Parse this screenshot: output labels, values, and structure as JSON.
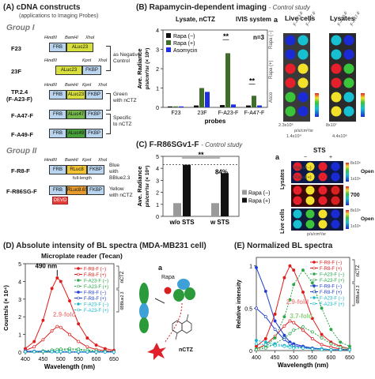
{
  "panelA": {
    "title": "(A) cDNA constructs",
    "subtitle": "(applications to Imaging Probes)",
    "group1": "Group I",
    "group2": "Group II",
    "sites": {
      "hindIII": "HindIII",
      "bamHI": "BamHI",
      "xhoI": "XhoI",
      "kpnI": "KpnI"
    },
    "constructs": [
      {
        "name": "F23",
        "parts": [
          "FRB",
          "ALuc23"
        ]
      },
      {
        "name": "23F",
        "parts": [
          "ALuc23",
          "FKBP"
        ]
      },
      {
        "name": "TP.2.4",
        "name2": "(F-A23-F)",
        "parts": [
          "FRB",
          "ALuc23",
          "FKBP"
        ]
      },
      {
        "name": "F-A47-F",
        "parts": [
          "FRB",
          "ALuc47",
          "FKBP"
        ]
      },
      {
        "name": "F-A49-F",
        "parts": [
          "FRB",
          "ALuc49",
          "FKBP"
        ]
      },
      {
        "name": "F-R8-F",
        "parts": [
          "FRB",
          "RLuc8",
          "FKBP"
        ]
      },
      {
        "name": "F-R86SG-F",
        "parts": [
          "FRB",
          "RLuc8.6SG",
          "FKBP"
        ],
        "extra": "DEVD"
      }
    ],
    "notes": {
      "negative": [
        "as Negative",
        "Control"
      ],
      "green": [
        "Green",
        "with nCTZ"
      ],
      "specific": [
        "Specific",
        "to nCTZ"
      ],
      "blue": [
        "Blue",
        "with",
        "BBlue2.3"
      ],
      "fulllength": "full-length",
      "yellow": [
        "Yellow",
        "with nCTZ"
      ]
    }
  },
  "panelB": {
    "title": "(B) Rapamycin-dependent imaging",
    "title_note": "- Control study",
    "sub1": "Lysate, nCTZ",
    "sub2": "IVIS system",
    "n": "n=3",
    "ylabel": "Ave. Radiance",
    "ylabel2": "p/s/cm²/sr (× 10⁶)",
    "xlabel": "probes",
    "sig": "**",
    "image_label": "a",
    "live_label": "Live cells",
    "lysates_label": "Lysates",
    "col1": "F-A23-F",
    "col2": "F-A47-F",
    "row_rapa_minus": "Rapa (−)",
    "row_rapa_plus": "Rapa (+)",
    "row_asco": "Asco",
    "scale_live_max": "2.3x10⁵",
    "scale_live_min": "1.4x10⁴",
    "scale_lys_max": "8x10⁷",
    "scale_lys_min": "4.4x10⁶",
    "scale_unit": "p/s/cm²/sr"
  },
  "panelC": {
    "title": "(C) F-R86SGv1-F",
    "title_note": "- Control study",
    "ylabel": "Ave. Radiance",
    "ylabel2": "p/s/cm²/sr (× 10⁸)",
    "percent": "84%",
    "sig": "**",
    "image_label": "a",
    "sts": "STS",
    "sts_minus": "−",
    "sts_plus": "+",
    "lysates": "Lysates",
    "live_cells": "Live cells",
    "row_rapa_minus": "Rapa (−)",
    "row_rapa_plus": "Rapa (+)",
    "scale1": "8x10⁶",
    "scale1_min": "1x10⁶",
    "scale2": "700",
    "scale3": "8x10⁵",
    "scale3_min": "1x10⁵",
    "open": "Open",
    "unit": "p/s/cm²/sr"
  },
  "panelD": {
    "title": "(D) Absolute intensity of BL spectra (MDA-MB231 cell)",
    "subtitle": "Microplate reader (Tecan)",
    "peak_label": "490 nm",
    "fold_label": "2.9-fold",
    "ylabel": "Counts/s (× 10⁴)",
    "xlabel": "Wavelength (nm)",
    "bracket1": "nCTZ",
    "bracket2": "6BBlue2.3",
    "scheme_label": "a",
    "rapa": "Rapa",
    "nctz": "nCTZ",
    "frb": "FRB",
    "fkbp": "FKBP",
    "luc": "ALuc"
  },
  "panelE": {
    "title": "(E) Normalized BL spectra",
    "ylabel": "Relative intensity",
    "xlabel": "Wavelength (nm)",
    "fold1": "2.9-fold",
    "fold2": "3.7-fold",
    "bracket1": "nCTZ",
    "bracket2": "6BBlue2.3"
  },
  "colors": {
    "rapa_minus": "#111111",
    "rapa_plus": "#3f6e2a",
    "asomycin": "#1f2fe0",
    "red": "#e01b1b",
    "green": "#2ba84a",
    "blue": "#1f3fd0",
    "cyan": "#17b6c9",
    "grey": "#9a9a9a",
    "salmon": "#f08c8c"
  },
  "chart_data": [
    {
      "id": "B",
      "type": "bar",
      "categories": [
        "F23",
        "23F",
        "F-A23-F",
        "F-A47-F"
      ],
      "series": [
        {
          "name": "Rapa (−)",
          "values": [
            0.05,
            0.1,
            0.12,
            0.1
          ]
        },
        {
          "name": "Rapa (+)",
          "values": [
            0.05,
            1.0,
            2.8,
            0.6
          ]
        },
        {
          "name": "Asomycin",
          "values": [
            0.05,
            0.8,
            0.15,
            0.1
          ]
        }
      ],
      "ylim": [
        0,
        4
      ],
      "yticks": [
        0,
        1,
        2,
        3,
        4
      ],
      "legend": "top-left"
    },
    {
      "id": "C",
      "type": "bar",
      "categories": [
        "w/o STS",
        "w STS"
      ],
      "series": [
        {
          "name": "Rapa (−)",
          "values": [
            1.1,
            1.1
          ]
        },
        {
          "name": "Rapa (+)",
          "values": [
            4.3,
            3.6
          ]
        }
      ],
      "ylim": [
        0,
        5
      ],
      "yticks": [
        0,
        1,
        2,
        3,
        4,
        5
      ],
      "reference_line": 4.3,
      "legend": "right"
    },
    {
      "id": "D",
      "type": "line",
      "x": [
        400,
        425,
        450,
        475,
        490,
        500,
        525,
        550,
        575,
        600,
        625,
        650
      ],
      "series": [
        {
          "name": "F-R8-F (−)",
          "values": [
            0.2,
            0.6,
            1.8,
            3.6,
            4.2,
            4.0,
            2.9,
            1.6,
            0.8,
            0.4,
            0.2,
            0.1
          ]
        },
        {
          "name": "F-R8-F (+)",
          "values": [
            0.1,
            0.3,
            0.7,
            1.2,
            1.45,
            1.4,
            1.0,
            0.6,
            0.3,
            0.15,
            0.08,
            0.05
          ]
        },
        {
          "name": "F-A23-F (−)",
          "values": [
            0.02,
            0.03,
            0.05,
            0.08,
            0.1,
            0.12,
            0.14,
            0.12,
            0.08,
            0.05,
            0.03,
            0.02
          ]
        },
        {
          "name": "F-A23-F (+)",
          "values": [
            0.02,
            0.04,
            0.07,
            0.12,
            0.15,
            0.17,
            0.2,
            0.17,
            0.12,
            0.07,
            0.04,
            0.02
          ]
        },
        {
          "name": "F-R8-F (−)",
          "values": [
            0.05,
            0.04,
            0.03,
            0.02,
            0.02,
            0.02,
            0.01,
            0.01,
            0.01,
            0.01,
            0.01,
            0.01
          ]
        },
        {
          "name": "F-R8-F (+)",
          "values": [
            0.06,
            0.05,
            0.04,
            0.03,
            0.02,
            0.02,
            0.02,
            0.01,
            0.01,
            0.01,
            0.01,
            0.01
          ]
        },
        {
          "name": "F-A23-F (−)",
          "values": [
            0.02,
            0.02,
            0.02,
            0.02,
            0.02,
            0.02,
            0.02,
            0.02,
            0.02,
            0.01,
            0.01,
            0.01
          ]
        },
        {
          "name": "F-A23-F (+)",
          "values": [
            0.03,
            0.03,
            0.03,
            0.03,
            0.03,
            0.03,
            0.03,
            0.02,
            0.02,
            0.01,
            0.01,
            0.01
          ]
        }
      ],
      "xlim": [
        400,
        650
      ],
      "ylim": [
        0,
        5
      ],
      "yticks": [
        0,
        1,
        2,
        3,
        4,
        5
      ],
      "xticks": [
        400,
        450,
        500,
        550,
        600,
        650
      ],
      "legend": "top-right"
    },
    {
      "id": "E",
      "type": "line",
      "x": [
        400,
        425,
        450,
        475,
        490,
        500,
        525,
        550,
        575,
        600,
        625,
        650
      ],
      "series": [
        {
          "name": "F-R8-F (−)",
          "values": [
            0.05,
            0.14,
            0.43,
            0.86,
            1.0,
            0.95,
            0.69,
            0.38,
            0.19,
            0.1,
            0.05,
            0.02
          ]
        },
        {
          "name": "F-R8-F (+)",
          "values": [
            0.02,
            0.07,
            0.17,
            0.29,
            0.35,
            0.33,
            0.24,
            0.14,
            0.07,
            0.04,
            0.02,
            0.01
          ]
        },
        {
          "name": "F-A23-F (−)",
          "values": [
            0.02,
            0.05,
            0.15,
            0.4,
            0.6,
            0.78,
            0.95,
            0.8,
            0.5,
            0.25,
            0.1,
            0.05
          ]
        },
        {
          "name": "F-A23-F (+)",
          "values": [
            0.01,
            0.03,
            0.08,
            0.15,
            0.2,
            0.24,
            0.28,
            0.22,
            0.15,
            0.08,
            0.04,
            0.02
          ]
        },
        {
          "name": "F-R8-F (−)",
          "values": [
            0.98,
            0.7,
            0.35,
            0.18,
            0.1,
            0.08,
            0.05,
            0.03,
            0.02,
            0.01,
            0.01,
            0.01
          ]
        },
        {
          "name": "F-R8-F (+)",
          "values": [
            0.5,
            0.4,
            0.25,
            0.13,
            0.08,
            0.06,
            0.04,
            0.02,
            0.02,
            0.01,
            0.01,
            0.01
          ]
        },
        {
          "name": "F-A23-F (−)",
          "values": [
            0.12,
            0.1,
            0.08,
            0.06,
            0.05,
            0.04,
            0.03,
            0.02,
            0.02,
            0.01,
            0.01,
            0.01
          ]
        },
        {
          "name": "F-A23-F (+)",
          "values": [
            0.08,
            0.07,
            0.06,
            0.05,
            0.04,
            0.03,
            0.03,
            0.02,
            0.01,
            0.01,
            0.01,
            0.01
          ]
        }
      ],
      "xlim": [
        400,
        650
      ],
      "ylim": [
        0,
        1.1
      ],
      "yticks": [
        0,
        0.5,
        1.0
      ],
      "xticks": [
        400,
        450,
        500,
        550,
        600,
        650
      ],
      "legend": "top-right"
    }
  ]
}
